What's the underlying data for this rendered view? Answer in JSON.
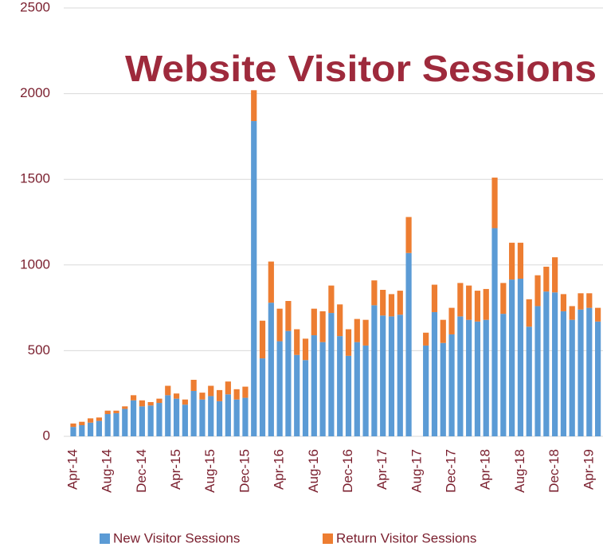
{
  "chart_data": {
    "type": "stacked_bar",
    "title": "Website Visitor Sessions",
    "categories": [
      "Apr-14",
      null,
      null,
      null,
      "Aug-14",
      null,
      null,
      null,
      "Dec-14",
      null,
      null,
      null,
      "Apr-15",
      null,
      null,
      null,
      "Aug-15",
      null,
      null,
      null,
      "Dec-15",
      null,
      null,
      null,
      "Apr-16",
      null,
      null,
      null,
      "Aug-16",
      null,
      null,
      null,
      "Dec-16",
      null,
      null,
      null,
      "Apr-17",
      null,
      null,
      null,
      "Aug-17",
      null,
      null,
      null,
      "Dec-17",
      null,
      null,
      null,
      "Apr-18",
      null,
      null,
      null,
      "Aug-18",
      null,
      null,
      null,
      "Dec-18",
      null,
      null,
      null,
      "Apr-19",
      null
    ],
    "series": [
      {
        "name": "New Visitor Sessions",
        "color": "#5b9bd5",
        "values": [
          55,
          65,
          80,
          90,
          130,
          135,
          160,
          210,
          175,
          180,
          195,
          240,
          220,
          185,
          265,
          215,
          235,
          205,
          245,
          215,
          225,
          1840,
          455,
          780,
          555,
          615,
          475,
          445,
          590,
          550,
          720,
          585,
          470,
          550,
          530,
          765,
          705,
          700,
          710,
          1070,
          null,
          530,
          725,
          545,
          595,
          700,
          680,
          670,
          680,
          1215,
          715,
          915,
          920,
          640,
          760,
          845,
          840,
          730,
          680,
          740,
          750,
          670
        ]
      },
      {
        "name": "Return Visitor Sessions",
        "color": "#ed7d31",
        "values": [
          20,
          20,
          25,
          20,
          20,
          15,
          15,
          30,
          35,
          20,
          25,
          55,
          30,
          30,
          65,
          40,
          60,
          65,
          75,
          60,
          65,
          180,
          220,
          240,
          190,
          175,
          150,
          125,
          155,
          180,
          160,
          185,
          155,
          135,
          150,
          145,
          150,
          130,
          140,
          210,
          null,
          75,
          160,
          135,
          155,
          195,
          200,
          180,
          180,
          295,
          180,
          215,
          210,
          160,
          180,
          145,
          205,
          100,
          80,
          95,
          85,
          80
        ]
      }
    ],
    "ylim": [
      0,
      2500
    ],
    "yticks": [
      0,
      500,
      1000,
      1500,
      2000,
      2500
    ],
    "grid": true,
    "legend": "bottom"
  }
}
